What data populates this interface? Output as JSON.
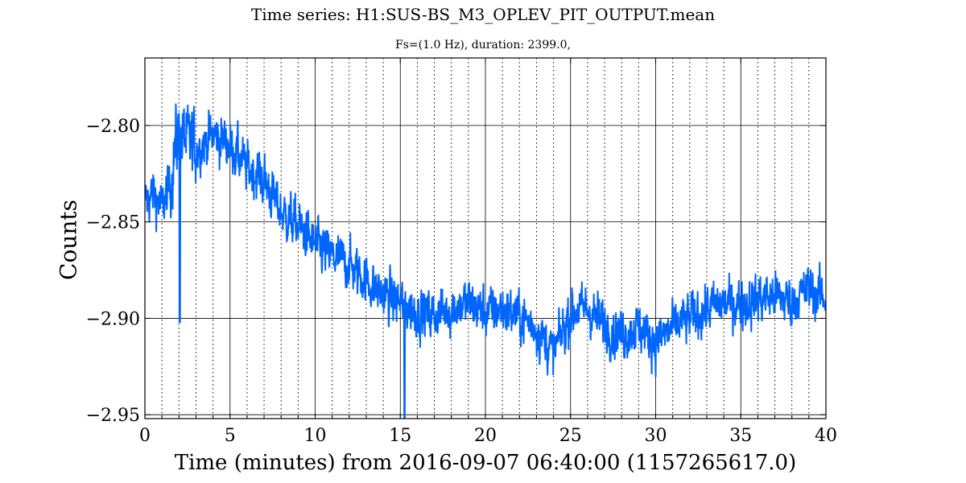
{
  "chart_data": {
    "type": "line",
    "title": "Time series: H1:SUS-BS_M3_OPLEV_PIT_OUTPUT.mean",
    "subtitle": "Fs=(1.0 Hz), duration: 2399.0,",
    "xlabel": "Time (minutes) from 2016-09-07 06:40:00 (1157265617.0)",
    "ylabel": "Counts",
    "xlim": [
      0,
      40
    ],
    "ylim": [
      -2.952,
      -2.765
    ],
    "xticks": [
      0,
      5,
      10,
      15,
      20,
      25,
      30,
      35,
      40
    ],
    "xtick_labels": [
      "0",
      "5",
      "10",
      "15",
      "20",
      "25",
      "30",
      "35",
      "40"
    ],
    "yticks": [
      -2.95,
      -2.9,
      -2.85,
      -2.8
    ],
    "ytick_labels": [
      "−2.95",
      "−2.90",
      "−2.85",
      "−2.80"
    ],
    "minor_xticks": [
      1,
      2,
      3,
      4,
      6,
      7,
      8,
      9,
      11,
      12,
      13,
      14,
      16,
      17,
      18,
      19,
      21,
      22,
      23,
      24,
      26,
      27,
      28,
      29,
      31,
      32,
      33,
      34,
      36,
      37,
      38,
      39
    ],
    "grid": "major solid, minor dotted vertical",
    "series": [
      {
        "color": "#0066ff",
        "x": [
          0,
          0.5,
          1,
          1.5,
          1.8,
          2,
          2.5,
          3,
          4,
          5,
          6,
          7,
          8,
          9,
          10,
          11,
          12,
          13,
          14,
          15,
          16,
          17,
          18,
          19,
          20,
          21,
          22,
          23,
          24,
          25,
          26,
          27,
          28,
          29,
          30,
          31,
          32,
          33,
          34,
          35,
          36,
          37,
          38,
          39,
          40
        ],
        "y": [
          -2.84,
          -2.835,
          -2.843,
          -2.83,
          -2.81,
          -2.805,
          -2.808,
          -2.812,
          -2.805,
          -2.81,
          -2.822,
          -2.828,
          -2.845,
          -2.852,
          -2.862,
          -2.868,
          -2.872,
          -2.88,
          -2.888,
          -2.892,
          -2.897,
          -2.898,
          -2.895,
          -2.892,
          -2.897,
          -2.895,
          -2.899,
          -2.905,
          -2.918,
          -2.897,
          -2.895,
          -2.904,
          -2.908,
          -2.905,
          -2.912,
          -2.905,
          -2.9,
          -2.895,
          -2.892,
          -2.893,
          -2.89,
          -2.888,
          -2.891,
          -2.885,
          -2.89
        ]
      }
    ]
  }
}
